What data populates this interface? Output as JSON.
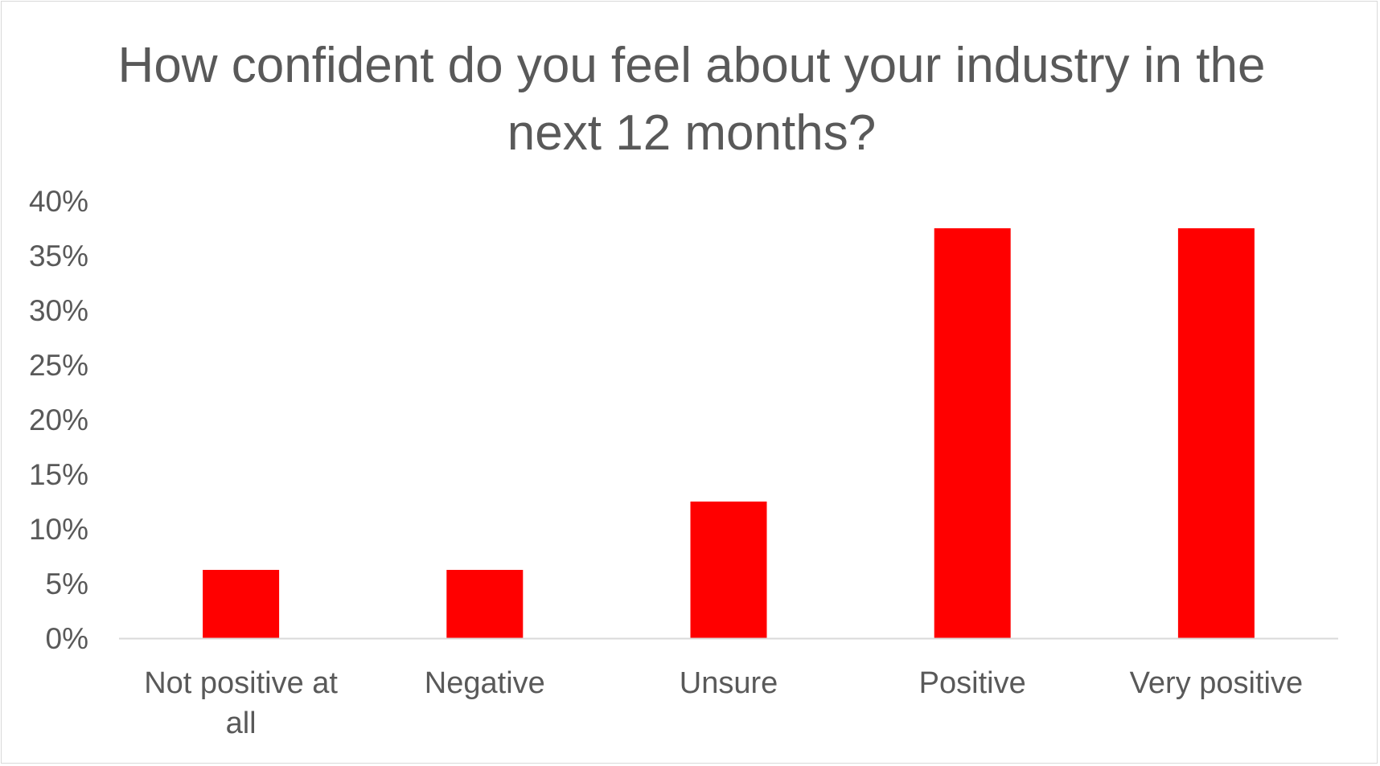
{
  "chart_data": {
    "type": "bar",
    "title": "How confident do you feel about your industry in the next 12 months?",
    "categories": [
      "Not positive at all",
      "Negative",
      "Unsure",
      "Positive",
      "Very positive"
    ],
    "category_lines": [
      [
        "Not positive at",
        "all"
      ],
      [
        "Negative"
      ],
      [
        "Unsure"
      ],
      [
        "Positive"
      ],
      [
        "Very positive"
      ]
    ],
    "values": [
      6.25,
      6.25,
      12.5,
      37.5,
      37.5
    ],
    "ylim": [
      0,
      40
    ],
    "yticks": [
      0,
      5,
      10,
      15,
      20,
      25,
      30,
      35,
      40
    ],
    "ytick_labels": [
      "0%",
      "5%",
      "10%",
      "15%",
      "20%",
      "25%",
      "30%",
      "35%",
      "40%"
    ],
    "xlabel": "",
    "ylabel": "",
    "grid": false,
    "legend": "none",
    "bar_color": "#ff0000",
    "axis_color": "#d9d9d9",
    "text_color": "#595959"
  }
}
